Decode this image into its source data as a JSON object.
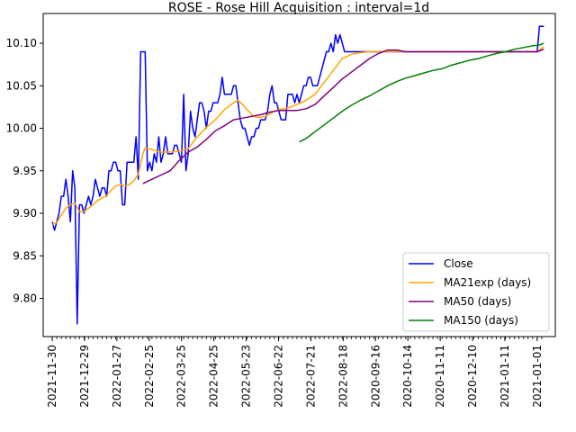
{
  "chart_data": {
    "type": "line",
    "title": "ROSE - Rose Hill Acquisition : interval=1d",
    "xlabel": "",
    "ylabel": "",
    "ylim": [
      9.755,
      10.135
    ],
    "y_ticks": [
      9.8,
      9.85,
      9.9,
      9.95,
      10.0,
      10.05,
      10.1
    ],
    "y_tick_labels": [
      "9.80",
      "9.85",
      "9.90",
      "9.95",
      "10.00",
      "10.05",
      "10.10"
    ],
    "x_tick_labels": [
      "2021-11-30",
      "2021-12-29",
      "2022-01-27",
      "2022-02-25",
      "2022-03-25",
      "2022-04-25",
      "2022-05-23",
      "2022-06-22",
      "2022-07-21",
      "2022-08-18",
      "2020-09-16",
      "2020-10-14",
      "2020-11-11",
      "2020-12-10",
      "2021-01-11",
      "2021-01-01"
    ],
    "legend_position": "lower-right",
    "grid": false,
    "series": [
      {
        "name": "Close",
        "color": "#0000ff",
        "points": [
          [
            0,
            9.89
          ],
          [
            1,
            9.88
          ],
          [
            3,
            9.9
          ],
          [
            4,
            9.92
          ],
          [
            5,
            9.92
          ],
          [
            6,
            9.94
          ],
          [
            7,
            9.92
          ],
          [
            8,
            9.89
          ],
          [
            9,
            9.95
          ],
          [
            10,
            9.93
          ],
          [
            11,
            9.77
          ],
          [
            12,
            9.91
          ],
          [
            13,
            9.91
          ],
          [
            14,
            9.9
          ],
          [
            15,
            9.91
          ],
          [
            16,
            9.92
          ],
          [
            17,
            9.91
          ],
          [
            18,
            9.92
          ],
          [
            19,
            9.94
          ],
          [
            20,
            9.93
          ],
          [
            21,
            9.92
          ],
          [
            22,
            9.93
          ],
          [
            23,
            9.93
          ],
          [
            24,
            9.92
          ],
          [
            25,
            9.95
          ],
          [
            26,
            9.95
          ],
          [
            27,
            9.96
          ],
          [
            28,
            9.96
          ],
          [
            29,
            9.95
          ],
          [
            30,
            9.95
          ],
          [
            31,
            9.91
          ],
          [
            32,
            9.91
          ],
          [
            33,
            9.96
          ],
          [
            34,
            9.96
          ],
          [
            35,
            9.96
          ],
          [
            36,
            9.96
          ],
          [
            37,
            9.99
          ],
          [
            38,
            9.94
          ],
          [
            39,
            10.09
          ],
          [
            40,
            10.09
          ],
          [
            41,
            10.09
          ],
          [
            42,
            9.95
          ],
          [
            43,
            9.96
          ],
          [
            44,
            9.95
          ],
          [
            45,
            9.97
          ],
          [
            46,
            9.96
          ],
          [
            47,
            9.99
          ],
          [
            48,
            9.96
          ],
          [
            49,
            9.97
          ],
          [
            50,
            9.99
          ],
          [
            51,
            9.97
          ],
          [
            52,
            9.97
          ],
          [
            53,
            9.97
          ],
          [
            54,
            9.98
          ],
          [
            55,
            9.98
          ],
          [
            56,
            9.97
          ],
          [
            57,
            9.96
          ],
          [
            58,
            10.04
          ],
          [
            59,
            9.95
          ],
          [
            60,
            9.97
          ],
          [
            61,
            10.02
          ],
          [
            62,
            10.0
          ],
          [
            63,
            9.99
          ],
          [
            64,
            10.01
          ],
          [
            65,
            10.03
          ],
          [
            66,
            10.03
          ],
          [
            67,
            10.02
          ],
          [
            68,
            10.0
          ],
          [
            69,
            10.02
          ],
          [
            70,
            10.02
          ],
          [
            71,
            10.03
          ],
          [
            72,
            10.03
          ],
          [
            73,
            10.03
          ],
          [
            74,
            10.04
          ],
          [
            75,
            10.06
          ],
          [
            76,
            10.04
          ],
          [
            77,
            10.04
          ],
          [
            78,
            10.04
          ],
          [
            79,
            10.04
          ],
          [
            80,
            10.05
          ],
          [
            81,
            10.05
          ],
          [
            82,
            10.03
          ],
          [
            83,
            10.01
          ],
          [
            84,
            10.0
          ],
          [
            85,
            10.0
          ],
          [
            86,
            9.99
          ],
          [
            87,
            9.98
          ],
          [
            88,
            9.99
          ],
          [
            89,
            9.99
          ],
          [
            90,
            10.0
          ],
          [
            91,
            10.0
          ],
          [
            92,
            10.01
          ],
          [
            93,
            10.01
          ],
          [
            94,
            10.01
          ],
          [
            95,
            10.02
          ],
          [
            96,
            10.04
          ],
          [
            97,
            10.05
          ],
          [
            98,
            10.03
          ],
          [
            99,
            10.03
          ],
          [
            100,
            10.02
          ],
          [
            101,
            10.01
          ],
          [
            102,
            10.01
          ],
          [
            103,
            10.01
          ],
          [
            104,
            10.04
          ],
          [
            105,
            10.04
          ],
          [
            106,
            10.04
          ],
          [
            107,
            10.03
          ],
          [
            108,
            10.04
          ],
          [
            109,
            10.03
          ],
          [
            110,
            10.04
          ],
          [
            111,
            10.05
          ],
          [
            112,
            10.05
          ],
          [
            113,
            10.06
          ],
          [
            114,
            10.06
          ],
          [
            115,
            10.05
          ],
          [
            116,
            10.05
          ],
          [
            117,
            10.05
          ],
          [
            118,
            10.06
          ],
          [
            119,
            10.07
          ],
          [
            120,
            10.08
          ],
          [
            121,
            10.09
          ],
          [
            122,
            10.09
          ],
          [
            123,
            10.1
          ],
          [
            124,
            10.09
          ],
          [
            125,
            10.11
          ],
          [
            126,
            10.1
          ],
          [
            127,
            10.11
          ],
          [
            128,
            10.1
          ],
          [
            129,
            10.09
          ],
          [
            130,
            10.09
          ],
          [
            135,
            10.09
          ],
          [
            140,
            10.09
          ],
          [
            145,
            10.09
          ],
          [
            150,
            10.09
          ],
          [
            155,
            10.09
          ],
          [
            160,
            10.09
          ],
          [
            165,
            10.09
          ],
          [
            170,
            10.09
          ],
          [
            175,
            10.09
          ],
          [
            180,
            10.09
          ],
          [
            185,
            10.09
          ],
          [
            190,
            10.09
          ],
          [
            195,
            10.09
          ],
          [
            200,
            10.09
          ],
          [
            205,
            10.09
          ],
          [
            210,
            10.09
          ],
          [
            214,
            10.09
          ],
          [
            215,
            10.12
          ],
          [
            217,
            10.12
          ]
        ]
      },
      {
        "name": "MA21exp (days)",
        "color": "#ffa500",
        "points": [
          [
            0,
            9.887
          ],
          [
            2,
            9.889
          ],
          [
            4,
            9.898
          ],
          [
            6,
            9.906
          ],
          [
            8,
            9.91
          ],
          [
            10,
            9.912
          ],
          [
            12,
            9.902
          ],
          [
            14,
            9.902
          ],
          [
            16,
            9.906
          ],
          [
            18,
            9.91
          ],
          [
            20,
            9.915
          ],
          [
            22,
            9.918
          ],
          [
            24,
            9.921
          ],
          [
            26,
            9.927
          ],
          [
            28,
            9.932
          ],
          [
            30,
            9.934
          ],
          [
            32,
            9.932
          ],
          [
            34,
            9.934
          ],
          [
            36,
            9.938
          ],
          [
            38,
            9.946
          ],
          [
            40,
            9.97
          ],
          [
            41,
            9.977
          ],
          [
            44,
            9.975
          ],
          [
            48,
            9.972
          ],
          [
            52,
            9.972
          ],
          [
            56,
            9.973
          ],
          [
            60,
            9.976
          ],
          [
            64,
            9.99
          ],
          [
            68,
            10.001
          ],
          [
            72,
            10.01
          ],
          [
            76,
            10.022
          ],
          [
            80,
            10.03
          ],
          [
            82,
            10.033
          ],
          [
            84,
            10.028
          ],
          [
            86,
            10.022
          ],
          [
            88,
            10.016
          ],
          [
            90,
            10.013
          ],
          [
            92,
            10.013
          ],
          [
            94,
            10.014
          ],
          [
            96,
            10.017
          ],
          [
            98,
            10.02
          ],
          [
            100,
            10.022
          ],
          [
            104,
            10.024
          ],
          [
            108,
            10.028
          ],
          [
            112,
            10.033
          ],
          [
            116,
            10.04
          ],
          [
            120,
            10.054
          ],
          [
            124,
            10.068
          ],
          [
            128,
            10.082
          ],
          [
            132,
            10.087
          ],
          [
            136,
            10.089
          ],
          [
            140,
            10.09
          ],
          [
            150,
            10.09
          ],
          [
            160,
            10.09
          ],
          [
            170,
            10.09
          ],
          [
            180,
            10.09
          ],
          [
            190,
            10.09
          ],
          [
            200,
            10.09
          ],
          [
            210,
            10.09
          ],
          [
            214,
            10.09
          ],
          [
            217,
            10.096
          ]
        ]
      },
      {
        "name": "MA50 (days)",
        "color": "#800080",
        "points": [
          [
            40,
            9.935
          ],
          [
            44,
            9.94
          ],
          [
            48,
            9.945
          ],
          [
            52,
            9.95
          ],
          [
            56,
            9.962
          ],
          [
            60,
            9.972
          ],
          [
            64,
            9.978
          ],
          [
            68,
            9.987
          ],
          [
            72,
            9.997
          ],
          [
            76,
            10.003
          ],
          [
            80,
            10.01
          ],
          [
            84,
            10.012
          ],
          [
            88,
            10.014
          ],
          [
            92,
            10.016
          ],
          [
            96,
            10.019
          ],
          [
            100,
            10.021
          ],
          [
            104,
            10.021
          ],
          [
            108,
            10.021
          ],
          [
            112,
            10.023
          ],
          [
            116,
            10.028
          ],
          [
            120,
            10.038
          ],
          [
            124,
            10.048
          ],
          [
            128,
            10.058
          ],
          [
            132,
            10.066
          ],
          [
            136,
            10.074
          ],
          [
            140,
            10.082
          ],
          [
            144,
            10.088
          ],
          [
            148,
            10.092
          ],
          [
            152,
            10.092
          ],
          [
            156,
            10.09
          ],
          [
            160,
            10.09
          ],
          [
            170,
            10.09
          ],
          [
            180,
            10.09
          ],
          [
            190,
            10.09
          ],
          [
            200,
            10.09
          ],
          [
            210,
            10.09
          ],
          [
            214,
            10.09
          ],
          [
            217,
            10.093
          ]
        ]
      },
      {
        "name": "MA150 (days)",
        "color": "#008000",
        "points": [
          [
            109,
            9.984
          ],
          [
            112,
            9.988
          ],
          [
            116,
            9.996
          ],
          [
            120,
            10.004
          ],
          [
            124,
            10.012
          ],
          [
            128,
            10.02
          ],
          [
            132,
            10.027
          ],
          [
            136,
            10.033
          ],
          [
            140,
            10.038
          ],
          [
            144,
            10.044
          ],
          [
            148,
            10.05
          ],
          [
            152,
            10.055
          ],
          [
            156,
            10.059
          ],
          [
            160,
            10.062
          ],
          [
            164,
            10.065
          ],
          [
            168,
            10.068
          ],
          [
            172,
            10.07
          ],
          [
            176,
            10.074
          ],
          [
            180,
            10.077
          ],
          [
            184,
            10.08
          ],
          [
            188,
            10.082
          ],
          [
            192,
            10.085
          ],
          [
            196,
            10.088
          ],
          [
            200,
            10.09
          ],
          [
            204,
            10.093
          ],
          [
            208,
            10.095
          ],
          [
            212,
            10.097
          ],
          [
            215,
            10.098
          ],
          [
            217,
            10.1
          ]
        ]
      }
    ]
  }
}
